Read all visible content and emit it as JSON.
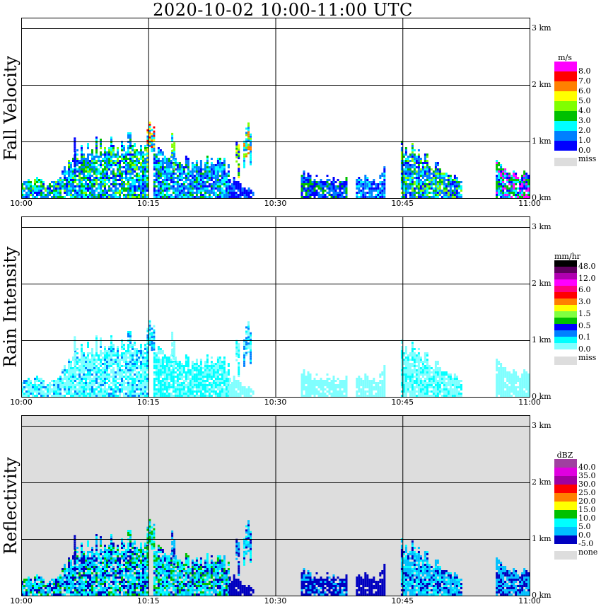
{
  "title": "2020-10-02   10:00-11:00 UTC",
  "chart_data": [
    {
      "type": "heatmap",
      "title": "Fall Velocity",
      "ylabel": "Fall Velocity",
      "x_ticks": [
        "10:00",
        "10:15",
        "10:30",
        "10:45",
        "11:00"
      ],
      "x_range_min": [
        0,
        60
      ],
      "y_ticks": [
        "0 km",
        "1 km",
        "2 km",
        "3 km"
      ],
      "y_range_km": [
        0,
        3.2
      ],
      "grid": true,
      "background": "#ffffff",
      "legend": {
        "unit": "m/s",
        "labels": [
          "8.0",
          "7.0",
          "6.0",
          "5.0",
          "4.0",
          "3.0",
          "2.0",
          "1.0",
          "0.0"
        ],
        "colors": [
          "#ff00ff",
          "#ff0000",
          "#ff8000",
          "#ffff00",
          "#80ff00",
          "#00c000",
          "#00ffff",
          "#0080ff",
          "#0000ff"
        ],
        "missing_label": "miss",
        "missing_color": "#dddddd"
      },
      "echoes": [
        {
          "t0": 0,
          "t1": 14.8,
          "top_km": [
            0.3,
            0.35,
            0.25,
            0.5,
            0.9,
            1.0,
            1.05,
            1.0,
            1.2,
            1.0
          ],
          "palette": [
            8,
            7,
            7,
            6,
            5,
            6,
            7,
            4,
            5
          ]
        },
        {
          "t0": 14.8,
          "t1": 15.6,
          "top_km": [
            1.3
          ],
          "palette": [
            2,
            1,
            3,
            7,
            6
          ]
        },
        {
          "t0": 15.6,
          "t1": 24.5,
          "top_km": [
            0.95,
            0.9,
            0.8,
            0.65,
            0.7,
            0.8,
            0.6
          ],
          "palette": [
            7,
            6,
            7,
            5,
            6,
            7,
            8
          ]
        },
        {
          "t0": 24.5,
          "t1": 27.5,
          "top_km": [
            0.4,
            0.2,
            0.1
          ],
          "palette": [
            8,
            7,
            8
          ]
        },
        {
          "t0": 6.2,
          "t1": 6.4,
          "top_km": [
            1.45
          ],
          "palette": [
            8
          ]
        },
        {
          "t0": 17.7,
          "t1": 18.1,
          "top_km": [
            1.25
          ],
          "palette": [
            4,
            6,
            7
          ]
        },
        {
          "t0": 25.3,
          "t1": 25.7,
          "top_km": [
            1.3
          ],
          "palette": [
            4,
            3,
            5,
            8
          ]
        },
        {
          "t0": 26.2,
          "t1": 27.0,
          "top_km": [
            1.3
          ],
          "palette": [
            2,
            4,
            6,
            7,
            7
          ]
        },
        {
          "t0": 33,
          "t1": 38.5,
          "top_km": [
            0.45,
            0.4,
            0.35,
            0.4
          ],
          "palette": [
            7,
            8,
            7,
            8,
            5
          ]
        },
        {
          "t0": 39.5,
          "t1": 43,
          "top_km": [
            0.3,
            0.45,
            0.25,
            0.6
          ],
          "palette": [
            7,
            8,
            7,
            6
          ]
        },
        {
          "t0": 44.8,
          "t1": 52,
          "top_km": [
            1.1,
            0.9,
            0.7,
            0.45,
            0.3
          ],
          "palette": [
            7,
            8,
            7,
            5,
            6,
            4
          ]
        },
        {
          "t0": 56,
          "t1": 60,
          "top_km": [
            0.8,
            0.5,
            0.45,
            0.6
          ],
          "palette": [
            7,
            8,
            6,
            5,
            0
          ]
        }
      ]
    },
    {
      "type": "heatmap",
      "title": "Rain Intensity",
      "ylabel": "Rain Intensity",
      "x_ticks": [
        "10:00",
        "10:15",
        "10:30",
        "10:45",
        "11:00"
      ],
      "x_range_min": [
        0,
        60
      ],
      "y_ticks": [
        "0 km",
        "1 km",
        "2 km",
        "3 km"
      ],
      "y_range_km": [
        0,
        3.2
      ],
      "grid": true,
      "background": "#ffffff",
      "legend": {
        "unit": "mm/hr",
        "labels": [
          "48.0",
          "12.0",
          "6.0",
          "3.0",
          "1.5",
          "0.5",
          "0.1",
          "0.0"
        ],
        "colors": [
          "#000000",
          "#600060",
          "#b000b0",
          "#ff00ff",
          "#ff0080",
          "#ff0000",
          "#ff8000",
          "#ffff00",
          "#80ff40",
          "#00c000",
          "#0000ff",
          "#0080ff",
          "#00ffff",
          "#80ffff"
        ],
        "missing_label": "miss",
        "missing_color": "#dddddd"
      },
      "echoes": [
        {
          "t0": 0,
          "t1": 14.8,
          "top_km": [
            0.3,
            0.35,
            0.25,
            0.5,
            0.9,
            1.0,
            1.05,
            1.0,
            1.2,
            1.0
          ],
          "palette": [
            13,
            13,
            12,
            13,
            12,
            11,
            13
          ]
        },
        {
          "t0": 14.8,
          "t1": 15.6,
          "top_km": [
            1.3
          ],
          "palette": [
            13,
            12,
            11
          ]
        },
        {
          "t0": 15.6,
          "t1": 24.5,
          "top_km": [
            0.95,
            0.9,
            0.8,
            0.65,
            0.7,
            0.8,
            0.6
          ],
          "palette": [
            13,
            12,
            12,
            13,
            12
          ]
        },
        {
          "t0": 24.5,
          "t1": 27.5,
          "top_km": [
            0.4,
            0.2,
            0.1
          ],
          "palette": [
            13
          ]
        },
        {
          "t0": 6.2,
          "t1": 6.4,
          "top_km": [
            1.45
          ],
          "palette": [
            13
          ]
        },
        {
          "t0": 17.7,
          "t1": 18.1,
          "top_km": [
            1.25
          ],
          "palette": [
            13
          ]
        },
        {
          "t0": 25.3,
          "t1": 25.7,
          "top_km": [
            1.3
          ],
          "palette": [
            13,
            12
          ]
        },
        {
          "t0": 26.2,
          "t1": 27.0,
          "top_km": [
            1.3
          ],
          "palette": [
            13,
            11,
            12
          ]
        },
        {
          "t0": 33,
          "t1": 38.5,
          "top_km": [
            0.45,
            0.4,
            0.35,
            0.4
          ],
          "palette": [
            13
          ]
        },
        {
          "t0": 39.5,
          "t1": 43,
          "top_km": [
            0.3,
            0.45,
            0.25,
            0.6
          ],
          "palette": [
            13
          ]
        },
        {
          "t0": 44.8,
          "t1": 52,
          "top_km": [
            1.1,
            0.9,
            0.7,
            0.45,
            0.3
          ],
          "palette": [
            13,
            13,
            12
          ]
        },
        {
          "t0": 56,
          "t1": 60,
          "top_km": [
            0.8,
            0.5,
            0.45,
            0.6
          ],
          "palette": [
            13
          ]
        }
      ]
    },
    {
      "type": "heatmap",
      "title": "Reflectivity",
      "ylabel": "Reflectivity",
      "x_ticks": [
        "10:00",
        "10:15",
        "10:30",
        "10:45",
        "11:00"
      ],
      "x_range_min": [
        0,
        60
      ],
      "y_ticks": [
        "0 km",
        "1 km",
        "2 km",
        "3 km"
      ],
      "y_range_km": [
        0,
        3.2
      ],
      "grid": true,
      "background": "#dddddd",
      "legend": {
        "unit": "dBZ",
        "labels": [
          "40.0",
          "35.0",
          "30.0",
          "25.0",
          "20.0",
          "15.0",
          "10.0",
          "5.0",
          "0.0",
          "-5.0"
        ],
        "colors": [
          "#a040a0",
          "#e000e0",
          "#a000a0",
          "#ff0000",
          "#ff8000",
          "#ffff00",
          "#00c000",
          "#00ffff",
          "#00c0ff",
          "#0000c0"
        ],
        "missing_label": "none",
        "missing_color": "#dddddd"
      },
      "echoes": [
        {
          "t0": 0,
          "t1": 14.8,
          "top_km": [
            0.3,
            0.35,
            0.25,
            0.5,
            0.9,
            1.0,
            1.05,
            1.0,
            1.2,
            1.0
          ],
          "palette": [
            9,
            8,
            7,
            8,
            7,
            6,
            9
          ]
        },
        {
          "t0": 14.8,
          "t1": 15.6,
          "top_km": [
            1.3
          ],
          "palette": [
            8,
            6,
            7
          ]
        },
        {
          "t0": 15.6,
          "t1": 24.5,
          "top_km": [
            0.95,
            0.9,
            0.8,
            0.65,
            0.7,
            0.8,
            0.6
          ],
          "palette": [
            9,
            8,
            7,
            7,
            8,
            6
          ]
        },
        {
          "t0": 24.5,
          "t1": 27.5,
          "top_km": [
            0.4,
            0.2,
            0.1
          ],
          "palette": [
            9
          ]
        },
        {
          "t0": 6.2,
          "t1": 6.4,
          "top_km": [
            1.45
          ],
          "palette": [
            9
          ]
        },
        {
          "t0": 17.7,
          "t1": 18.1,
          "top_km": [
            1.25
          ],
          "palette": [
            8,
            9
          ]
        },
        {
          "t0": 25.3,
          "t1": 25.7,
          "top_km": [
            1.3
          ],
          "palette": [
            8,
            9
          ]
        },
        {
          "t0": 26.2,
          "t1": 27.0,
          "top_km": [
            1.3
          ],
          "palette": [
            8,
            7,
            9
          ]
        },
        {
          "t0": 33,
          "t1": 38.5,
          "top_km": [
            0.45,
            0.4,
            0.35,
            0.4
          ],
          "palette": [
            9,
            8,
            9
          ]
        },
        {
          "t0": 39.5,
          "t1": 43,
          "top_km": [
            0.3,
            0.45,
            0.25,
            0.6
          ],
          "palette": [
            9
          ]
        },
        {
          "t0": 44.8,
          "t1": 52,
          "top_km": [
            1.1,
            0.9,
            0.7,
            0.45,
            0.3
          ],
          "palette": [
            8,
            8,
            7,
            9
          ]
        },
        {
          "t0": 56,
          "t1": 60,
          "top_km": [
            0.8,
            0.5,
            0.45,
            0.6
          ],
          "palette": [
            9,
            8
          ]
        }
      ]
    }
  ]
}
